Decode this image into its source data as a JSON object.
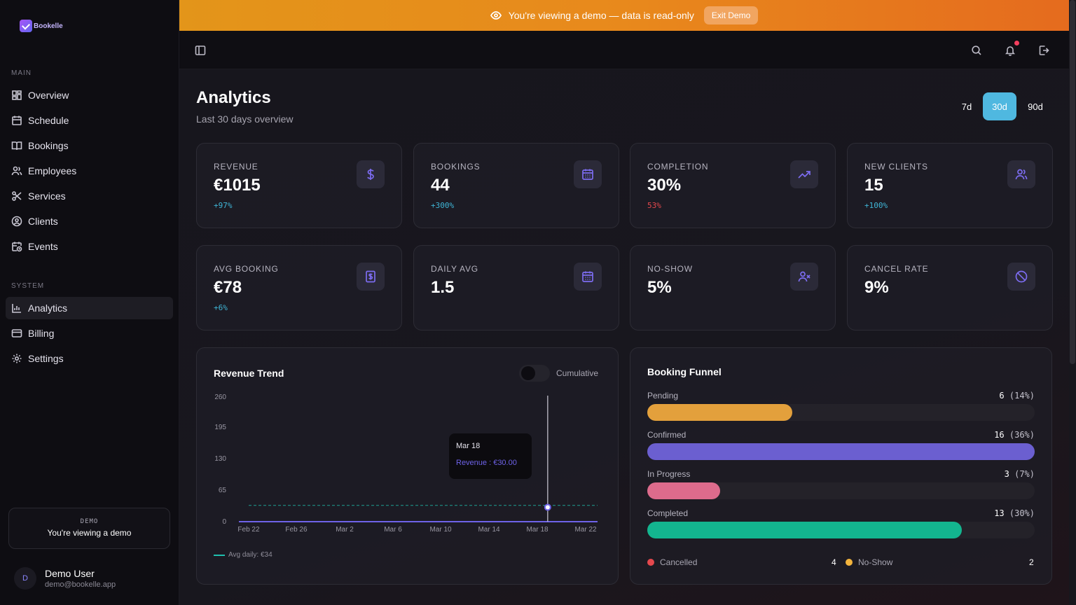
{
  "app": {
    "logo_text": "Bookelle"
  },
  "banner": {
    "text": "You're viewing a demo — data is read-only",
    "exit_label": "Exit Demo"
  },
  "sidebar": {
    "main_heading": "MAIN",
    "main_items": [
      {
        "label": "Overview",
        "icon": "grid-icon"
      },
      {
        "label": "Schedule",
        "icon": "calendar-icon"
      },
      {
        "label": "Bookings",
        "icon": "book-icon"
      },
      {
        "label": "Employees",
        "icon": "users-icon"
      },
      {
        "label": "Services",
        "icon": "scissors-icon"
      },
      {
        "label": "Clients",
        "icon": "user-circle-icon"
      },
      {
        "label": "Events",
        "icon": "calendar-clock-icon"
      }
    ],
    "system_heading": "SYSTEM",
    "system_items": [
      {
        "label": "Analytics",
        "icon": "bar-chart-icon",
        "active": true
      },
      {
        "label": "Billing",
        "icon": "credit-card-icon"
      },
      {
        "label": "Settings",
        "icon": "gear-icon"
      }
    ],
    "demo_card": {
      "tag": "DEMO",
      "message": "You're viewing a demo"
    },
    "user": {
      "initial": "D",
      "name": "Demo User",
      "email": "demo@bookelle.app"
    }
  },
  "page": {
    "title": "Analytics",
    "subtitle": "Last 30 days overview",
    "ranges": [
      "7d",
      "30d",
      "90d"
    ],
    "active_range": "30d"
  },
  "colors": {
    "positive": "#3fb5d6",
    "negative": "#e5484d",
    "accent": "#7c6cf0",
    "range_active": "#4fb8e0"
  },
  "stats": [
    {
      "label": "REVENUE",
      "value": "€1015",
      "delta": "+97%",
      "trend": "up",
      "icon": "dollar-icon"
    },
    {
      "label": "BOOKINGS",
      "value": "44",
      "delta": "+300%",
      "trend": "up",
      "icon": "calendar-icon"
    },
    {
      "label": "COMPLETION",
      "value": "30%",
      "delta": "53%",
      "trend": "down",
      "icon": "trending-up-icon"
    },
    {
      "label": "NEW CLIENTS",
      "value": "15",
      "delta": "+100%",
      "trend": "up",
      "icon": "users-icon"
    },
    {
      "label": "AVG BOOKING",
      "value": "€78",
      "delta": "+6%",
      "trend": "up",
      "icon": "receipt-icon"
    },
    {
      "label": "DAILY AVG",
      "value": "1.5",
      "delta": "",
      "trend": "none",
      "icon": "calendar-icon"
    },
    {
      "label": "NO-SHOW",
      "value": "5%",
      "delta": "",
      "trend": "none",
      "icon": "user-x-icon"
    },
    {
      "label": "CANCEL RATE",
      "value": "9%",
      "delta": "",
      "trend": "none",
      "icon": "ban-icon"
    }
  ],
  "revenue_trend": {
    "title": "Revenue Trend",
    "toggle_label": "Cumulative",
    "toggle_on": false,
    "tooltip": {
      "date": "Mar 18",
      "text": "Revenue : €30.00"
    },
    "legend": "Avg daily: €34"
  },
  "chart_data": {
    "type": "line",
    "title": "Revenue Trend",
    "x_ticks": [
      "Feb 22",
      "Feb 26",
      "Mar 2",
      "Mar 6",
      "Mar 10",
      "Mar 14",
      "Mar 18",
      "Mar 22"
    ],
    "y_ticks": [
      "0",
      "65",
      "130",
      "195",
      "260"
    ],
    "ylim": [
      0,
      260
    ],
    "series": [
      {
        "name": "Revenue",
        "color": "#6e62e8",
        "highlight": {
          "x": "Mar 18",
          "y": 30
        }
      }
    ],
    "reference_line": {
      "label": "Avg daily: €34",
      "value": 34,
      "color": "#1fbfae"
    }
  },
  "funnel": {
    "title": "Booking Funnel",
    "stages": [
      {
        "label": "Pending",
        "count": "6",
        "pct": "(14%)",
        "fill": 0.375,
        "color": "#e3a03c"
      },
      {
        "label": "Confirmed",
        "count": "16",
        "pct": "(36%)",
        "fill": 1.0,
        "color": "#6b5fd0"
      },
      {
        "label": "In Progress",
        "count": "3",
        "pct": "(7%)",
        "fill": 0.1875,
        "color": "#dd6b8c"
      },
      {
        "label": "Completed",
        "count": "13",
        "pct": "(30%)",
        "fill": 0.8125,
        "color": "#13b58f"
      }
    ],
    "legend": [
      {
        "label": "Cancelled",
        "count": "4",
        "color": "#e5484d"
      },
      {
        "label": "No-Show",
        "count": "2",
        "color": "#f3b43d"
      }
    ]
  }
}
